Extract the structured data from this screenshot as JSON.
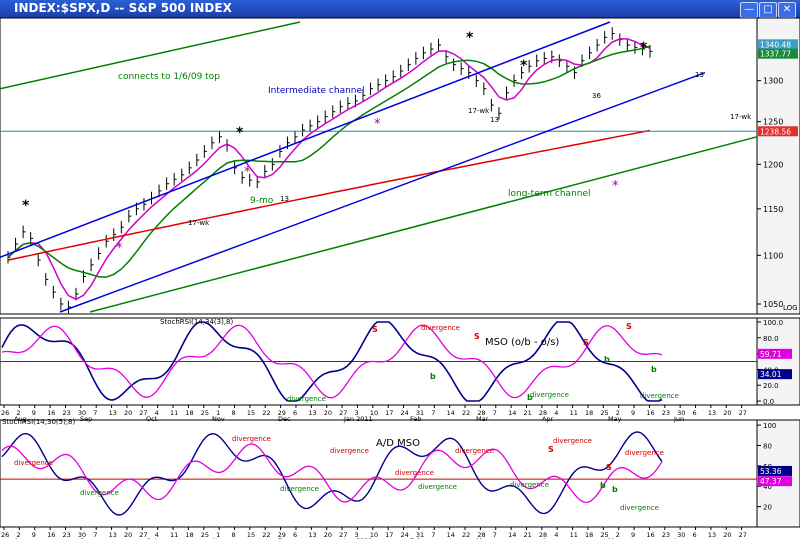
{
  "window": {
    "title": "INDEX:$SPX,D -- S&P 500 INDEX",
    "buttons": [
      "—",
      "□",
      "✕"
    ]
  },
  "chart_data": [
    {
      "type": "line",
      "panel": "price",
      "title": "INDEX:$SPX,D -- S&P 500 INDEX",
      "y_ticks": [
        1050,
        1100,
        1150,
        1200,
        1250,
        1300
      ],
      "ylim": [
        1040,
        1375
      ],
      "yscale": "log-like",
      "price_labels": [
        "1340.48",
        "1337.77",
        "1238.56"
      ],
      "right_label": "LOG",
      "series": [
        {
          "name": "",
          "values": [
            1098,
            1112,
            1125,
            1118,
            1095,
            1075,
            1062,
            1050,
            1047,
            1060,
            1078,
            1090,
            1102,
            1115,
            1122,
            1130,
            1142,
            1150,
            1155,
            1162,
            1170,
            1178,
            1183,
            1188,
            1196,
            1205,
            1215,
            1225,
            1232,
            1222,
            1196,
            1185,
            1182,
            1180,
            1192,
            1200,
            1215,
            1225,
            1232,
            1240,
            1245,
            1250,
            1256,
            1262,
            1268,
            1272,
            1275,
            1282,
            1290,
            1295,
            1300,
            1305,
            1312,
            1320,
            1328,
            1335,
            1340,
            1345,
            1330,
            1320,
            1315,
            1310,
            1300,
            1290,
            1270,
            1260,
            1285,
            1300,
            1310,
            1318,
            1325,
            1328,
            1330,
            1325,
            1318,
            1310,
            1325,
            1335,
            1345,
            1355,
            1360,
            1352,
            1345,
            1342,
            1340,
            1337
          ]
        }
      ],
      "annotations": [
        "connects to 1/6/09 top",
        "Intermediate channel",
        "long-term channel",
        "9-mo",
        "13",
        "17-wk",
        "13",
        "17-wk",
        "13",
        "36",
        "17-wk"
      ]
    },
    {
      "type": "line",
      "panel": "stochrsi",
      "title": "StochRSI(14,34(3),8)",
      "y_ticks": [
        0.0,
        20.0,
        40.0,
        60.0,
        80.0,
        100.0
      ],
      "ylim": [
        -5,
        105
      ],
      "value_labels": [
        "59.71",
        "34.01"
      ],
      "annotations": [
        "MSO (o/b - o/s)",
        "divergence",
        "divergence",
        "divergence",
        "divergence",
        "S",
        "S",
        "S",
        "S",
        "b",
        "b",
        "b",
        "b"
      ]
    },
    {
      "type": "line",
      "panel": "admso",
      "title": "StochRSI(14,30(5),8)",
      "y_ticks": [
        20.0,
        40.0,
        60.0,
        80.0,
        100.0
      ],
      "ylim": [
        0,
        105
      ],
      "value_labels": [
        "53.36",
        "47.37"
      ],
      "annotations": [
        "A/D MSO",
        "divergence",
        "divergence",
        "divergence",
        "divergence",
        "divergence",
        "divergence",
        "divergence",
        "divergence",
        "divergence",
        "divergence",
        "divergence",
        "divergence",
        "S",
        "S",
        "b",
        "b"
      ]
    }
  ],
  "x_axis": {
    "day_ticks": [
      "26",
      "2",
      "9",
      "16",
      "23",
      "30",
      "7",
      "13",
      "20",
      "27",
      "4",
      "11",
      "18",
      "25",
      "1",
      "8",
      "15",
      "22",
      "29",
      "6",
      "13",
      "20",
      "27",
      "3",
      "10",
      "17",
      "24",
      "31",
      "7",
      "14",
      "22",
      "28",
      "7",
      "14",
      "21",
      "28",
      "4",
      "11",
      "18",
      "25",
      "2",
      "9",
      "16",
      "23",
      "30",
      "6",
      "13",
      "20",
      "27"
    ],
    "months": [
      "Aug",
      "Sep",
      "Oct",
      "Nov",
      "Dec",
      "Jan 2011",
      "Feb",
      "Mar",
      "Apr",
      "May",
      "Jun"
    ]
  }
}
